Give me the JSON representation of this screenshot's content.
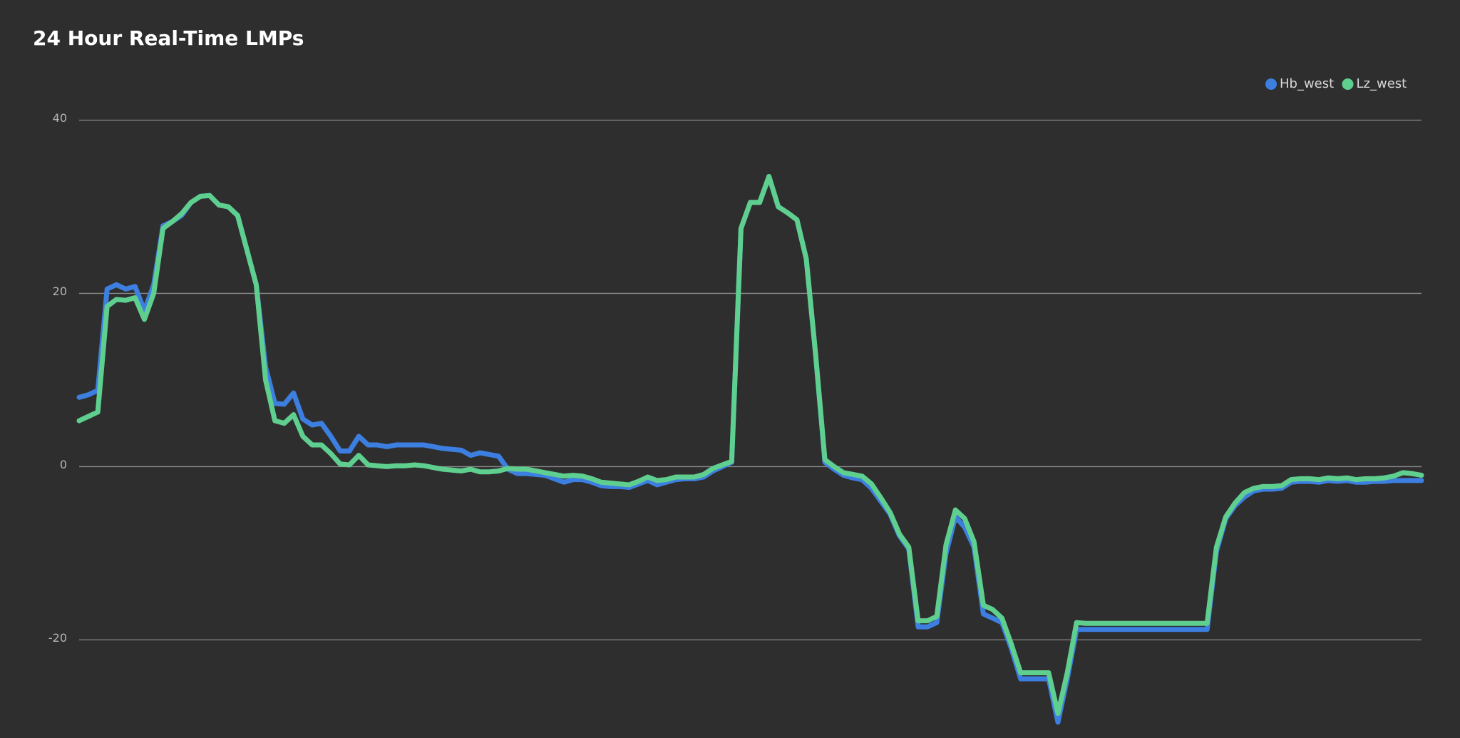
{
  "chart_data": {
    "type": "line",
    "title": "24 Hour Real-Time LMPs",
    "ylim": [
      -31,
      40
    ],
    "yticks": [
      -20,
      0,
      20,
      40
    ],
    "grid": true,
    "legend": "top-right",
    "series": [
      {
        "name": "Hb_west",
        "color": "#3d7fe0",
        "values": [
          8,
          8.3,
          8.8,
          20.5,
          21,
          20.5,
          20.8,
          18,
          21,
          27.8,
          28.3,
          29,
          30.5,
          31.2,
          31.3,
          30.2,
          30,
          29,
          25,
          21,
          11.5,
          7.3,
          7.2,
          8.5,
          5.5,
          4.8,
          5,
          3.5,
          1.8,
          1.8,
          3.5,
          2.5,
          2.5,
          2.3,
          2.5,
          2.5,
          2.5,
          2.5,
          2.3,
          2.1,
          2,
          1.9,
          1.3,
          1.6,
          1.4,
          1.2,
          -0.3,
          -0.8,
          -0.8,
          -0.9,
          -1,
          -1.4,
          -1.8,
          -1.5,
          -1.5,
          -1.8,
          -2.2,
          -2.3,
          -2.3,
          -2.4,
          -2,
          -1.6,
          -2.1,
          -1.8,
          -1.5,
          -1.4,
          -1.4,
          -1.2,
          -0.5,
          0,
          0.5,
          27.5,
          30.5,
          30.5,
          33.5,
          30,
          29.3,
          28.5,
          24,
          13,
          0.5,
          -0.3,
          -1,
          -1.3,
          -1.5,
          -2.5,
          -4,
          -5.5,
          -8,
          -9.5,
          -18.5,
          -18.5,
          -18,
          -10,
          -5.8,
          -7,
          -9.3,
          -17,
          -17.5,
          -18,
          -21,
          -24.5,
          -24.5,
          -24.5,
          -24.5,
          -29.5,
          -24.5,
          -18.8,
          -18.8,
          -18.8,
          -18.8,
          -18.8,
          -18.8,
          -18.8,
          -18.8,
          -18.8,
          -18.8,
          -18.8,
          -18.8,
          -18.8,
          -18.8,
          -18.8,
          -9.8,
          -6,
          -4.5,
          -3.5,
          -2.8,
          -2.6,
          -2.6,
          -2.5,
          -1.8,
          -1.7,
          -1.7,
          -1.8,
          -1.6,
          -1.7,
          -1.6,
          -1.8,
          -1.8,
          -1.7,
          -1.7,
          -1.6,
          -1.6,
          -1.6,
          -1.6
        ]
      },
      {
        "name": "Lz_west",
        "color": "#5fcf8f",
        "values": [
          5.3,
          5.8,
          6.3,
          18.5,
          19.3,
          19.2,
          19.5,
          17,
          20,
          27.5,
          28.3,
          29.2,
          30.5,
          31.2,
          31.3,
          30.2,
          30,
          29,
          25,
          21,
          10,
          5.3,
          5,
          6,
          3.5,
          2.5,
          2.5,
          1.5,
          0.3,
          0.2,
          1.3,
          0.2,
          0.1,
          0,
          0.1,
          0.1,
          0.2,
          0.1,
          -0.1,
          -0.3,
          -0.4,
          -0.5,
          -0.3,
          -0.6,
          -0.6,
          -0.5,
          -0.2,
          -0.3,
          -0.3,
          -0.5,
          -0.7,
          -0.9,
          -1.1,
          -1,
          -1.1,
          -1.4,
          -1.8,
          -1.9,
          -2,
          -2.1,
          -1.7,
          -1.2,
          -1.6,
          -1.5,
          -1.2,
          -1.2,
          -1.2,
          -0.9,
          -0.2,
          0.2,
          0.6,
          27.5,
          30.5,
          30.5,
          33.5,
          30,
          29.3,
          28.5,
          24,
          13,
          0.8,
          0,
          -0.7,
          -0.9,
          -1.1,
          -2,
          -3.6,
          -5.3,
          -7.8,
          -9.3,
          -17.8,
          -17.8,
          -17.3,
          -9,
          -5,
          -6,
          -8.7,
          -16,
          -16.5,
          -17.5,
          -20.5,
          -23.8,
          -23.8,
          -23.8,
          -23.8,
          -28.5,
          -23.8,
          -18,
          -18.1,
          -18.1,
          -18.1,
          -18.1,
          -18.1,
          -18.1,
          -18.1,
          -18.1,
          -18.1,
          -18.1,
          -18.1,
          -18.1,
          -18.1,
          -18.1,
          -9.3,
          -5.8,
          -4.2,
          -3,
          -2.5,
          -2.3,
          -2.3,
          -2.2,
          -1.5,
          -1.4,
          -1.4,
          -1.5,
          -1.3,
          -1.4,
          -1.3,
          -1.5,
          -1.4,
          -1.4,
          -1.3,
          -1.1,
          -0.7,
          -0.8,
          -1
        ]
      }
    ]
  }
}
